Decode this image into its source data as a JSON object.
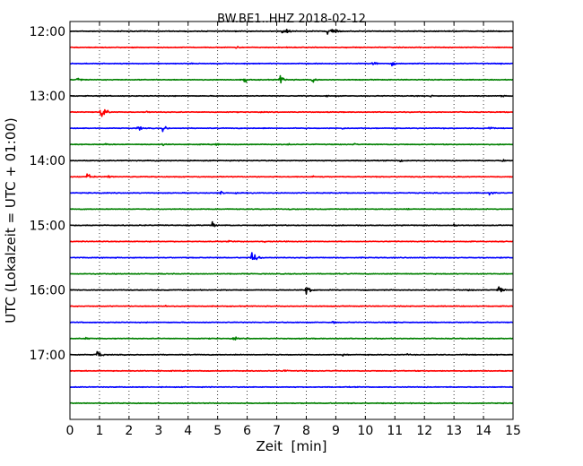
{
  "chart_data": {
    "type": "line",
    "title": "BW.BE1..HHZ 2018-02-12",
    "xlabel": "Zeit  [min]",
    "ylabel": "UTC (Lokalzeit = UTC + 01:00)",
    "xlim": [
      0,
      15
    ],
    "x_ticks": [
      "0",
      "1",
      "2",
      "3",
      "4",
      "5",
      "6",
      "7",
      "8",
      "9",
      "10",
      "11",
      "12",
      "13",
      "14",
      "15"
    ],
    "ylim_hours": [
      11.85,
      18.0
    ],
    "y_ticks": [
      "12:00",
      "13:00",
      "14:00",
      "15:00",
      "16:00",
      "17:00"
    ],
    "y_tick_hours": [
      12,
      13,
      14,
      15,
      16,
      17
    ],
    "row_interval_min": 15,
    "first_row_hour": 12.0,
    "grid": "x-dotted",
    "legend": "none",
    "series_colors": [
      "#000000",
      "#ff0000",
      "#0000ff",
      "#008000"
    ],
    "series": [
      {
        "label": "12:00",
        "events": [
          [
            7.2,
            0.3
          ],
          [
            7.35,
            0.25
          ],
          [
            8.7,
            0.3
          ],
          [
            8.85,
            0.35
          ],
          [
            9.0,
            0.25
          ]
        ]
      },
      {
        "label": "12:15",
        "events": [
          [
            5.6,
            0.18
          ]
        ]
      },
      {
        "label": "12:30",
        "events": [
          [
            10.25,
            0.35
          ],
          [
            10.9,
            0.2
          ],
          [
            14.5,
            0.12
          ]
        ]
      },
      {
        "label": "12:45",
        "events": [
          [
            0.25,
            0.25
          ],
          [
            5.9,
            0.3
          ],
          [
            7.1,
            0.55
          ],
          [
            8.2,
            0.3
          ]
        ]
      },
      {
        "label": "13:00",
        "events": [
          [
            8.7,
            0.12
          ],
          [
            12.2,
            0.12
          ],
          [
            14.6,
            0.12
          ]
        ]
      },
      {
        "label": "13:15",
        "events": [
          [
            1.05,
            1.0
          ],
          [
            2.6,
            0.15
          ]
        ]
      },
      {
        "label": "13:30",
        "events": [
          [
            2.3,
            0.3
          ],
          [
            3.15,
            0.35
          ],
          [
            9.2,
            0.15
          ],
          [
            14.2,
            0.15
          ]
        ]
      },
      {
        "label": "13:45",
        "events": [
          [
            1.2,
            0.15
          ],
          [
            3.1,
            0.2
          ],
          [
            4.95,
            0.15
          ],
          [
            7.4,
            0.12
          ],
          [
            9.6,
            0.15
          ]
        ]
      },
      {
        "label": "14:00",
        "events": [
          [
            11.2,
            0.2
          ],
          [
            14.65,
            0.15
          ],
          [
            2.9,
            0.1
          ]
        ]
      },
      {
        "label": "14:15",
        "events": [
          [
            0.6,
            0.5
          ],
          [
            1.3,
            0.2
          ],
          [
            8.2,
            0.15
          ]
        ]
      },
      {
        "label": "14:30",
        "events": [
          [
            5.1,
            0.2
          ],
          [
            5.6,
            0.15
          ],
          [
            14.2,
            0.35
          ]
        ]
      },
      {
        "label": "14:45",
        "events": [
          [
            7.4,
            0.12
          ],
          [
            11.4,
            0.12
          ]
        ]
      },
      {
        "label": "15:00",
        "events": [
          [
            4.8,
            0.35
          ],
          [
            9.7,
            0.12
          ],
          [
            13.0,
            0.18
          ]
        ]
      },
      {
        "label": "15:15",
        "events": [
          [
            5.35,
            0.2
          ],
          [
            6.6,
            0.1
          ]
        ]
      },
      {
        "label": "15:30",
        "events": [
          [
            6.15,
            1.0
          ]
        ]
      },
      {
        "label": "15:45",
        "events": [
          [
            11.0,
            0.1
          ]
        ]
      },
      {
        "label": "16:00",
        "events": [
          [
            8.0,
            0.75
          ],
          [
            14.5,
            0.5
          ],
          [
            13.5,
            0.15
          ]
        ]
      },
      {
        "label": "16:15",
        "events": [
          [
            3.25,
            0.12
          ]
        ]
      },
      {
        "label": "16:30",
        "events": [
          [
            8.9,
            0.2
          ],
          [
            11.0,
            0.12
          ]
        ]
      },
      {
        "label": "16:45",
        "events": [
          [
            0.5,
            0.2
          ],
          [
            5.55,
            0.2
          ],
          [
            13.0,
            0.1
          ]
        ]
      },
      {
        "label": "17:00",
        "events": [
          [
            0.9,
            0.6
          ],
          [
            9.25,
            0.18
          ],
          [
            11.4,
            0.12
          ]
        ]
      },
      {
        "label": "17:15",
        "events": [
          [
            7.2,
            0.18
          ]
        ]
      },
      {
        "label": "17:30",
        "events": []
      },
      {
        "label": "17:45",
        "events": []
      }
    ]
  }
}
